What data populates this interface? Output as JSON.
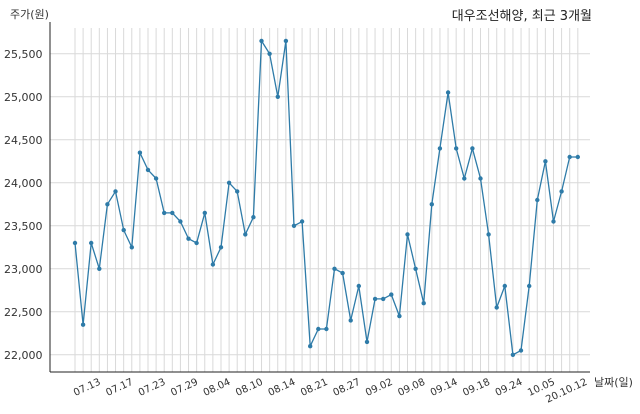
{
  "chart_data": {
    "type": "line",
    "title": "대우조선해양, 최근 3개월",
    "ylabel": "주가(원)",
    "xlabel": "날짜(일)",
    "ylim": [
      21800,
      25800
    ],
    "yticks": [
      22000,
      22500,
      23000,
      23500,
      24000,
      24500,
      25000,
      25500
    ],
    "ytick_labels": [
      "22,000",
      "22,500",
      "23,000",
      "23,500",
      "24,000",
      "24,500",
      "25,000",
      "25,500"
    ],
    "xtick_labels": [
      "07.13",
      "07.17",
      "07.23",
      "07.29",
      "08.04",
      "08.10",
      "08.14",
      "08.21",
      "08.27",
      "09.02",
      "09.08",
      "09.14",
      "09.18",
      "09.24",
      "10.05",
      "20.10.12"
    ],
    "grid": true,
    "series": [
      {
        "color": "#2e7ba8",
        "values": [
          23300,
          22350,
          23300,
          23000,
          23750,
          23900,
          23450,
          23250,
          24350,
          24150,
          24050,
          23650,
          23650,
          23550,
          23350,
          23300,
          23650,
          23050,
          23250,
          24000,
          23900,
          23400,
          23600,
          25650,
          25500,
          25000,
          25650,
          23500,
          23550,
          22100,
          22300,
          22300,
          23000,
          22950,
          22400,
          22800,
          22150,
          22650,
          22650,
          22700,
          22450,
          23400,
          23000,
          22600,
          23750,
          24400,
          25050,
          24400,
          24050,
          24400,
          24050,
          23400,
          22550,
          22800,
          22000,
          22050,
          22800,
          23800,
          24250,
          23550,
          23900,
          24300,
          24300
        ]
      }
    ]
  }
}
